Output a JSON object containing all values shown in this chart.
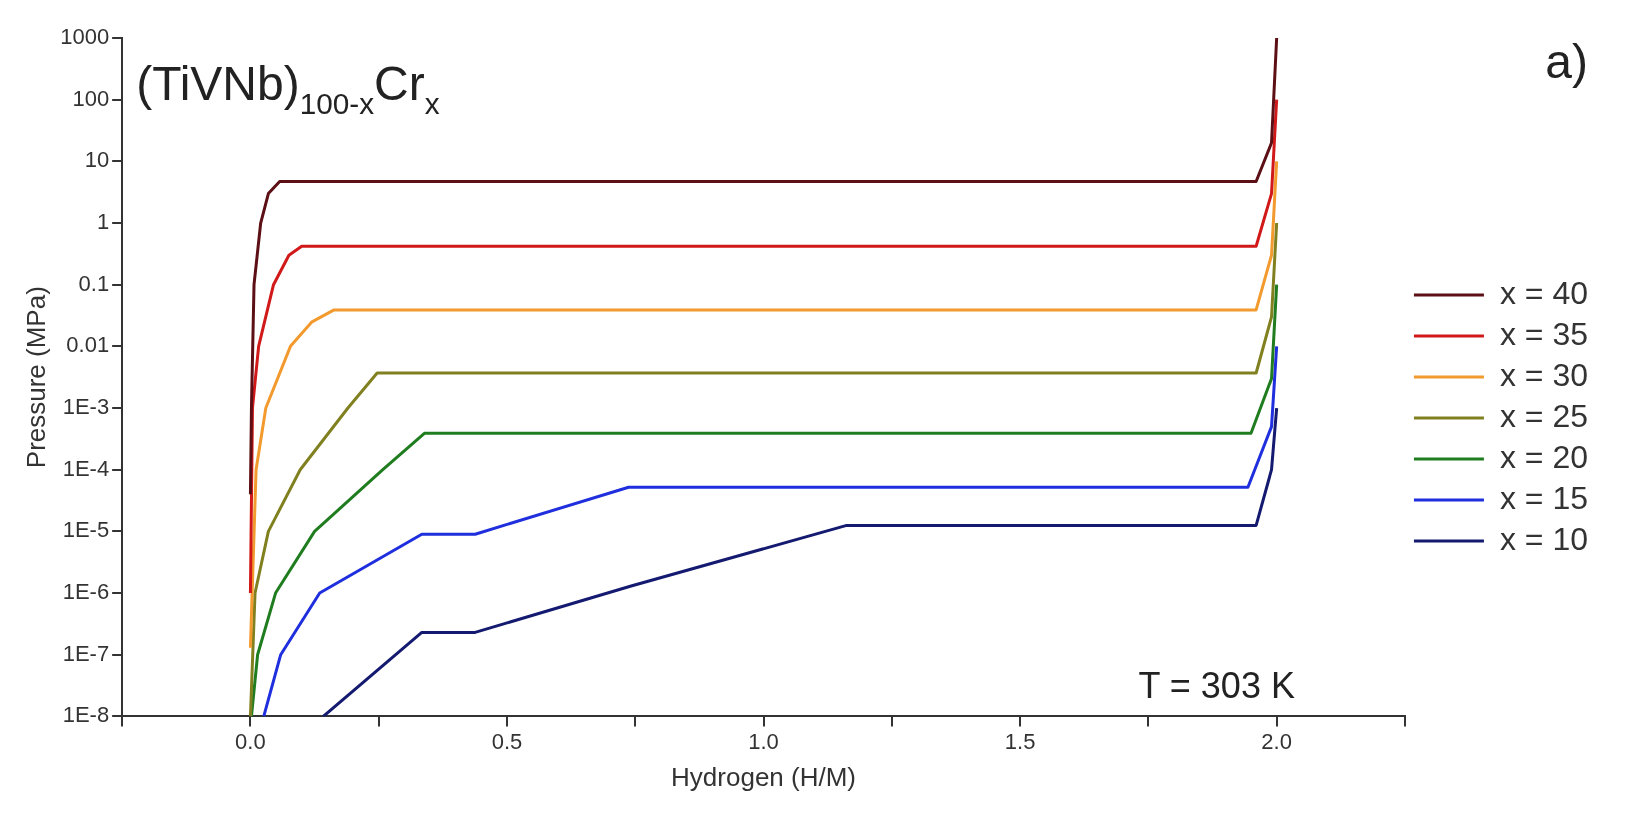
{
  "chart_data": {
    "type": "line",
    "title": "(TiVNb)$_{100-x}$Cr$_{x}$",
    "xlabel": "Hydrogen (H/M)",
    "ylabel": "Pressure (MPa)",
    "annotations": [
      "T = 303 K",
      "a)"
    ],
    "log": "y",
    "grid": false,
    "legend": "right",
    "marker": "none",
    "line_style": "solid",
    "xlim": [
      -0.25,
      2.25
    ],
    "ylim": [
      1e-08,
      1000
    ],
    "xticks": [
      {
        "value": -0.25,
        "label": null
      },
      {
        "value": 0,
        "label": "0.0"
      },
      {
        "value": 0.25,
        "label": null
      },
      {
        "value": 0.5,
        "label": "0.5"
      },
      {
        "value": 0.75,
        "label": null
      },
      {
        "value": 1,
        "label": "1.0"
      },
      {
        "value": 1.25,
        "label": null
      },
      {
        "value": 1.5,
        "label": "1.5"
      },
      {
        "value": 1.75,
        "label": null
      },
      {
        "value": 2,
        "label": "2.0"
      },
      {
        "value": 2.25,
        "label": null
      }
    ],
    "yticks": [
      1000,
      100,
      10,
      1,
      0.1,
      0.01,
      {
        "value": 0.001,
        "label": "1E-3"
      },
      {
        "value": 0.0001,
        "label": "1E-4"
      },
      {
        "value": 1e-05,
        "label": "1E-5"
      },
      {
        "value": 1e-06,
        "label": "1E-6"
      },
      {
        "value": 1e-07,
        "label": "1E-7"
      },
      {
        "value": 1e-08,
        "label": "1E-8"
      }
    ],
    "series": [
      {
        "name": "x = 40",
        "color": "#5c0f14",
        "x": [
          0,
          0.002,
          0.007,
          0.02,
          0.035,
          0.057,
          1.96,
          1.99,
          2.0
        ],
        "values": [
          4e-05,
          0.001,
          0.1,
          1,
          3,
          4.7,
          4.7,
          20,
          1000
        ]
      },
      {
        "name": "x = 35",
        "color": "#d11919",
        "x": [
          0,
          0.004,
          0.016,
          0.045,
          0.075,
          0.1,
          1.96,
          1.99,
          2.0
        ],
        "values": [
          1e-06,
          0.001,
          0.01,
          0.1,
          0.3,
          0.42,
          0.42,
          3,
          100
        ]
      },
      {
        "name": "x = 30",
        "color": "#f29a2e",
        "x": [
          0,
          0.011,
          0.03,
          0.078,
          0.12,
          0.163,
          1.96,
          1.99,
          2.0
        ],
        "values": [
          1.3e-07,
          0.0001,
          0.001,
          0.01,
          0.025,
          0.039,
          0.039,
          0.3,
          10
        ]
      },
      {
        "name": "x = 25",
        "color": "#808020",
        "x": [
          0,
          0.009,
          0.035,
          0.097,
          0.19,
          0.247,
          1.96,
          1.99,
          2.0
        ],
        "values": [
          1e-08,
          1e-06,
          1e-05,
          0.0001,
          0.001,
          0.0037,
          0.0037,
          0.03,
          1
        ]
      },
      {
        "name": "x = 20",
        "color": "#1f7d1f",
        "x": [
          0.002,
          0.014,
          0.049,
          0.125,
          0.258,
          0.339,
          1.95,
          1.99,
          2.0
        ],
        "values": [
          1e-08,
          1e-07,
          1e-06,
          1e-05,
          0.0001,
          0.00039,
          0.00039,
          0.003,
          0.1
        ]
      },
      {
        "name": "x = 15",
        "color": "#1f2fdd",
        "x": [
          0.026,
          0.059,
          0.135,
          0.334,
          0.438,
          0.737,
          1.944,
          1.99,
          2.0
        ],
        "values": [
          1e-08,
          1e-07,
          1e-06,
          9e-06,
          9e-06,
          5.2e-05,
          5.2e-05,
          0.0005,
          0.01
        ]
      },
      {
        "name": "x = 10",
        "color": "#141a70",
        "x": [
          0.142,
          0.334,
          0.438,
          0.742,
          1.162,
          1.96,
          1.99,
          2.0
        ],
        "values": [
          1e-08,
          2.3e-07,
          2.3e-07,
          1.3e-06,
          1.25e-05,
          1.25e-05,
          0.0001,
          0.001
        ]
      }
    ]
  }
}
